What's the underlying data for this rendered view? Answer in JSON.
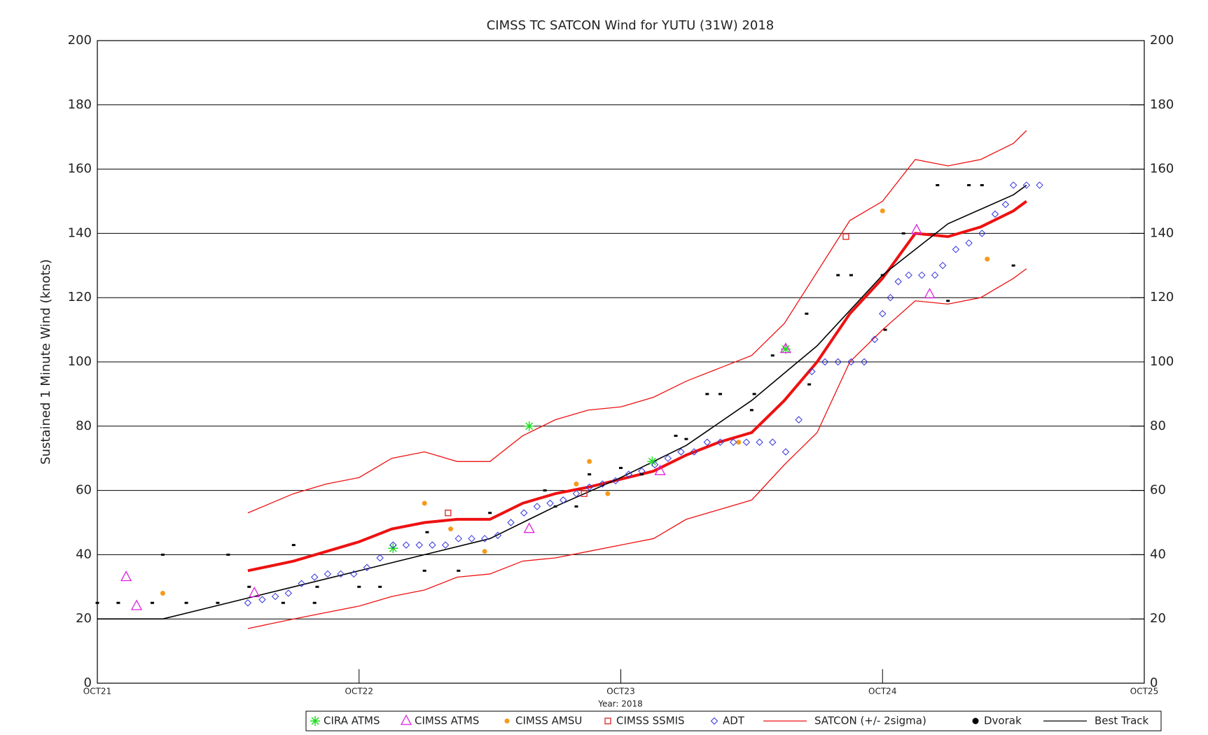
{
  "chart_data": {
    "type": "scatter",
    "title": "CIMSS TC SATCON Wind for YUTU (31W) 2018",
    "ylabel": "Sustained 1 Minute Wind (knots)",
    "xlabel": "Year: 2018",
    "xlim": [
      0,
      4
    ],
    "xticks": [
      {
        "value": 0,
        "label": "OCT21"
      },
      {
        "value": 1,
        "label": "OCT22"
      },
      {
        "value": 2,
        "label": "OCT23"
      },
      {
        "value": 3,
        "label": "OCT24"
      },
      {
        "value": 4,
        "label": "OCT25"
      }
    ],
    "ylim": [
      0,
      200
    ],
    "yticks": [
      0,
      20,
      40,
      60,
      80,
      100,
      120,
      140,
      160,
      180,
      200
    ],
    "y2lim": [
      0,
      200
    ],
    "y2ticks": [
      0,
      20,
      40,
      60,
      80,
      100,
      120,
      140,
      160,
      180,
      200
    ],
    "grid": true,
    "legend": "bottom",
    "series": [
      {
        "name": "CIRA ATMS",
        "color": "#22dd22",
        "marker": "asterisk",
        "x": [
          1.13,
          1.65,
          2.12,
          2.63
        ],
        "values": [
          42,
          80,
          69,
          104
        ]
      },
      {
        "name": "CIMSS ATMS",
        "color": "#dd22dd",
        "marker": "triangle",
        "x": [
          0.11,
          0.15,
          0.6,
          1.65,
          2.15,
          2.63,
          3.13,
          3.18
        ],
        "values": [
          33,
          24,
          28,
          48,
          66,
          104,
          141,
          121
        ]
      },
      {
        "name": "CIMSS AMSU",
        "color": "#f59a1a",
        "marker": "circle",
        "x": [
          0.25,
          1.25,
          1.35,
          1.48,
          1.83,
          1.88,
          1.95,
          2.45,
          3.0,
          3.4
        ],
        "values": [
          28,
          56,
          48,
          41,
          62,
          69,
          59,
          75,
          147,
          132
        ]
      },
      {
        "name": "CIMSS SSMIS",
        "color": "#dd2222",
        "marker": "square",
        "x": [
          1.34,
          1.86,
          2.86
        ],
        "values": [
          53,
          59,
          139
        ]
      },
      {
        "name": "ADT",
        "color": "#3333dd",
        "marker": "diamond",
        "x": [
          0.575,
          0.63,
          0.68,
          0.73,
          0.78,
          0.83,
          0.88,
          0.93,
          0.98,
          1.03,
          1.08,
          1.13,
          1.18,
          1.23,
          1.28,
          1.33,
          1.38,
          1.43,
          1.48,
          1.53,
          1.58,
          1.63,
          1.68,
          1.73,
          1.78,
          1.83,
          1.88,
          1.93,
          1.98,
          2.03,
          2.08,
          2.13,
          2.18,
          2.23,
          2.28,
          2.33,
          2.38,
          2.43,
          2.48,
          2.53,
          2.58,
          2.63,
          2.68,
          2.73,
          2.78,
          2.83,
          2.88,
          2.93,
          2.97,
          3.0,
          3.03,
          3.06,
          3.1,
          3.15,
          3.2,
          3.23,
          3.28,
          3.33,
          3.38,
          3.43,
          3.47,
          3.5,
          3.55,
          3.6
        ],
        "values": [
          25,
          26,
          27,
          28,
          31,
          33,
          34,
          34,
          34,
          36,
          39,
          43,
          43,
          43,
          43,
          43,
          45,
          45,
          45,
          46,
          50,
          53,
          55,
          56,
          57,
          59,
          61,
          62,
          63,
          65,
          66,
          68,
          70,
          72,
          72,
          75,
          75,
          75,
          75,
          75,
          75,
          72,
          82,
          97,
          100,
          100,
          100,
          100,
          107,
          115,
          120,
          125,
          127,
          127,
          127,
          130,
          135,
          137,
          140,
          146,
          149,
          155,
          155,
          155
        ]
      },
      {
        "name": "SATCON (+/- 2sigma)",
        "color": "#ee1111",
        "marker": "band",
        "x": [
          0.575,
          0.75,
          0.875,
          1.0,
          1.125,
          1.25,
          1.375,
          1.5,
          1.625,
          1.75,
          1.875,
          2.0,
          2.125,
          2.25,
          2.375,
          2.5,
          2.625,
          2.75,
          2.875,
          3.0,
          3.125,
          3.25,
          3.375,
          3.5,
          3.55
        ],
        "values": [
          35,
          38,
          41,
          44,
          48,
          50,
          51,
          51,
          56,
          59,
          61,
          63.5,
          66,
          71,
          75,
          78,
          88,
          100,
          115,
          126,
          140,
          139,
          142,
          147,
          150
        ],
        "upper": [
          53,
          59,
          62,
          64,
          70,
          72,
          69,
          69,
          77,
          82,
          85,
          86,
          89,
          94,
          98,
          102,
          112,
          128,
          144,
          150,
          163,
          161,
          163,
          168,
          172
        ],
        "lower": [
          17,
          20,
          22,
          24,
          27,
          29,
          33,
          34,
          38,
          39,
          41,
          43,
          45,
          51,
          54,
          57,
          68,
          78,
          100,
          110,
          119,
          118,
          120,
          126,
          129
        ]
      },
      {
        "name": "Dvorak",
        "color": "#000000",
        "marker": "dot",
        "x": [
          0,
          0.08,
          0.21,
          0.25,
          0.34,
          0.46,
          0.5,
          0.58,
          0.71,
          0.75,
          0.83,
          0.84,
          1.0,
          1.08,
          1.25,
          1.26,
          1.38,
          1.5,
          1.71,
          1.75,
          1.83,
          1.88,
          2.0,
          2.08,
          2.21,
          2.25,
          2.33,
          2.38,
          2.5,
          2.51,
          2.58,
          2.71,
          2.72,
          2.83,
          2.88,
          3.0,
          3.01,
          3.08,
          3.21,
          3.25,
          3.33,
          3.38,
          3.5
        ],
        "values": [
          25,
          25,
          25,
          40,
          25,
          25,
          40,
          30,
          25,
          43,
          25,
          30,
          30,
          30,
          35,
          47,
          35,
          53,
          60,
          55,
          55,
          65,
          67,
          65,
          77,
          76,
          90,
          90,
          85,
          90,
          102,
          115,
          93,
          127,
          127,
          127,
          110,
          140,
          155,
          119,
          155,
          155,
          130
        ]
      },
      {
        "name": "Best Track",
        "color": "#000000",
        "marker": "line",
        "x": [
          0,
          0.25,
          0.5,
          0.75,
          1,
          1.25,
          1.5,
          1.75,
          2,
          2.25,
          2.5,
          2.75,
          3,
          3.25,
          3.5,
          3.55
        ],
        "values": [
          20,
          20,
          25,
          30,
          35,
          40,
          45,
          55,
          64,
          74,
          88,
          105,
          127,
          143,
          152,
          155
        ]
      }
    ]
  }
}
